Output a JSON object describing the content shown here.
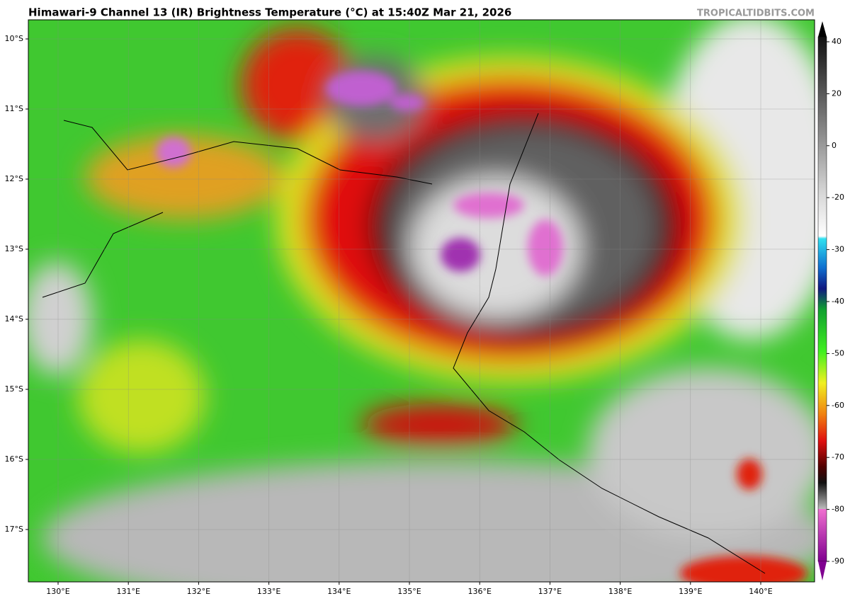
{
  "title": "Himawari-9 Channel 13 (IR) Brightness Temperature (°C) at 15:40Z Mar 21, 2026",
  "watermark": "TROPICALTIDBITS.COM",
  "map": {
    "lat_labels": [
      "10°S",
      "11°S",
      "12°S",
      "13°S",
      "14°S",
      "15°S",
      "16°S",
      "17°S"
    ],
    "lon_labels": [
      "130°E",
      "131°E",
      "132°E",
      "133°E",
      "134°E",
      "135°E",
      "136°E",
      "137°E",
      "138°E",
      "139°E",
      "140°E"
    ]
  },
  "colorbar": {
    "ticks": [
      40,
      20,
      0,
      -20,
      -30,
      -40,
      -50,
      -60,
      -70,
      -80,
      -90
    ]
  }
}
